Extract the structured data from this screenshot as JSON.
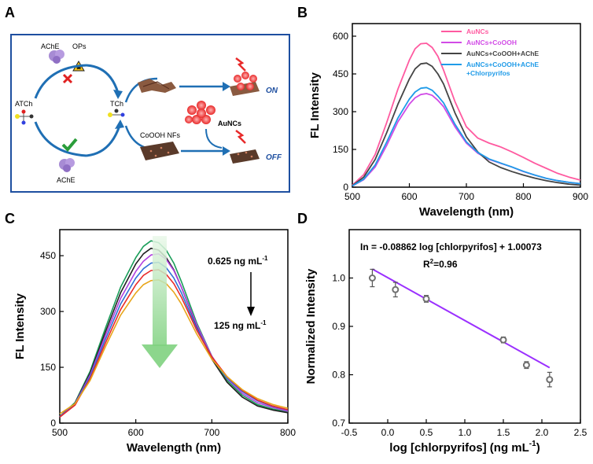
{
  "panels": {
    "A": {
      "letter": "A",
      "labels": {
        "ache_top": "AChE",
        "ops": "OPs",
        "atch": "ATCh",
        "tch": "TCh",
        "ache_bottom": "AChE",
        "cooh": "CoOOH NFs",
        "aunc": "AuNCs",
        "on": "ON",
        "off": "OFF"
      }
    },
    "B": {
      "letter": "B"
    },
    "C": {
      "letter": "C",
      "annot_top": "0.625 ng mL",
      "annot_top_sup": "-1",
      "annot_bottom": "125 ng mL",
      "annot_bottom_sup": "-1"
    },
    "D": {
      "letter": "D",
      "equation": "In = -0.08862 log [chlorpyrifos] + 1.00073",
      "r2_prefix": "R",
      "r2_sup": "2",
      "r2_value": "=0.96"
    }
  },
  "colors": {
    "aunc": "#ff5aa0",
    "aunc_cooh": "#d14be6",
    "aunc_cooh_ache": "#444444",
    "aunc_cooh_ache_cpf": "#1f9be8",
    "fit_line": "#9b30ff",
    "points": "#707070",
    "arrow_green": "#7fd17f",
    "frame_blue": "#1e4fa0"
  },
  "chart_data": [
    {
      "panel": "B",
      "type": "line",
      "xlabel": "Wavelength (nm)",
      "ylabel": "FL Intensity",
      "xlim": [
        500,
        900
      ],
      "ylim": [
        0,
        650
      ],
      "xticks": [
        500,
        600,
        700,
        800,
        900
      ],
      "yticks": [
        0,
        150,
        300,
        450,
        600
      ],
      "legend_position": "top-right",
      "series": [
        {
          "name": "AuNCs",
          "color_key": "aunc",
          "x": [
            500,
            520,
            540,
            560,
            580,
            600,
            610,
            620,
            630,
            640,
            650,
            660,
            680,
            700,
            720,
            740,
            760,
            780,
            800,
            820,
            840,
            860,
            880,
            900
          ],
          "y": [
            8,
            50,
            130,
            255,
            390,
            505,
            550,
            570,
            572,
            555,
            520,
            465,
            340,
            240,
            195,
            175,
            160,
            140,
            118,
            95,
            75,
            55,
            40,
            28
          ]
        },
        {
          "name": "AuNCs+CoOOH",
          "color_key": "aunc_cooh",
          "x": [
            500,
            520,
            540,
            560,
            580,
            600,
            610,
            620,
            630,
            640,
            650,
            660,
            680,
            700,
            720,
            740,
            760,
            780,
            800,
            820,
            840,
            860,
            880,
            900
          ],
          "y": [
            5,
            30,
            80,
            165,
            260,
            330,
            355,
            368,
            372,
            365,
            345,
            320,
            240,
            175,
            135,
            110,
            95,
            80,
            62,
            48,
            35,
            26,
            19,
            14
          ]
        },
        {
          "name": "AuNCs+CoOOH+AChE",
          "color_key": "aunc_cooh_ache",
          "x": [
            500,
            520,
            540,
            560,
            580,
            600,
            610,
            620,
            630,
            640,
            650,
            660,
            680,
            700,
            720,
            740,
            760,
            780,
            800,
            820,
            840,
            860,
            880,
            900
          ],
          "y": [
            6,
            40,
            110,
            215,
            330,
            430,
            470,
            490,
            493,
            480,
            450,
            410,
            295,
            200,
            140,
            100,
            78,
            62,
            48,
            36,
            26,
            18,
            12,
            8
          ]
        },
        {
          "name": "AuNCs+CoOOH+AChE +Chlorpyrifos",
          "color_key": "aunc_cooh_ache_cpf",
          "x": [
            500,
            520,
            540,
            560,
            580,
            600,
            610,
            620,
            630,
            640,
            650,
            660,
            680,
            700,
            720,
            740,
            760,
            780,
            800,
            820,
            840,
            860,
            880,
            900
          ],
          "y": [
            5,
            32,
            88,
            178,
            275,
            350,
            378,
            393,
            396,
            385,
            362,
            335,
            250,
            180,
            138,
            112,
            96,
            80,
            63,
            48,
            35,
            26,
            19,
            14
          ]
        }
      ]
    },
    {
      "panel": "C",
      "type": "line",
      "xlabel": "Wavelength (nm)",
      "ylabel": "FL Intensity",
      "xlim": [
        500,
        800
      ],
      "ylim": [
        0,
        520
      ],
      "xticks": [
        500,
        600,
        700,
        800
      ],
      "yticks": [
        0,
        150,
        300,
        450
      ],
      "concentration_range": [
        "0.625 ng mL-1",
        "125 ng mL-1"
      ],
      "series": [
        {
          "name": "c1",
          "color": "#1a9e5a",
          "x": [
            500,
            520,
            540,
            560,
            580,
            600,
            610,
            620,
            630,
            640,
            650,
            660,
            680,
            700,
            720,
            740,
            760,
            780,
            800
          ],
          "y": [
            18,
            55,
            140,
            255,
            365,
            445,
            475,
            490,
            485,
            465,
            430,
            380,
            270,
            180,
            115,
            75,
            50,
            38,
            30
          ]
        },
        {
          "name": "c2",
          "color": "#222222",
          "x": [
            500,
            520,
            540,
            560,
            580,
            600,
            610,
            620,
            630,
            640,
            650,
            660,
            680,
            700,
            720,
            740,
            760,
            780,
            800
          ],
          "y": [
            17,
            53,
            135,
            245,
            350,
            428,
            455,
            470,
            465,
            445,
            412,
            365,
            262,
            172,
            110,
            70,
            46,
            35,
            28
          ]
        },
        {
          "name": "c3",
          "color": "#b040e0",
          "x": [
            500,
            520,
            540,
            560,
            580,
            600,
            610,
            620,
            630,
            640,
            650,
            660,
            680,
            700,
            720,
            740,
            760,
            780,
            800
          ],
          "y": [
            17,
            52,
            130,
            235,
            335,
            408,
            435,
            452,
            455,
            440,
            410,
            365,
            265,
            180,
            120,
            80,
            55,
            42,
            32
          ]
        },
        {
          "name": "c4",
          "color": "#2f6fd6",
          "x": [
            500,
            520,
            540,
            560,
            580,
            600,
            610,
            620,
            630,
            640,
            650,
            660,
            680,
            700,
            720,
            740,
            760,
            780,
            800
          ],
          "y": [
            16,
            50,
            125,
            225,
            320,
            390,
            415,
            430,
            432,
            418,
            390,
            350,
            255,
            178,
            122,
            85,
            60,
            45,
            35
          ]
        },
        {
          "name": "c5",
          "color": "#e82a2a",
          "x": [
            500,
            520,
            540,
            560,
            580,
            600,
            610,
            620,
            630,
            640,
            650,
            660,
            680,
            700,
            720,
            740,
            760,
            780,
            800
          ],
          "y": [
            16,
            48,
            120,
            215,
            305,
            372,
            397,
            410,
            412,
            400,
            375,
            338,
            250,
            178,
            125,
            88,
            62,
            46,
            36
          ]
        },
        {
          "name": "c6",
          "color": "#e8a51a",
          "x": [
            500,
            520,
            540,
            560,
            580,
            600,
            610,
            620,
            630,
            640,
            650,
            660,
            680,
            700,
            720,
            740,
            760,
            780,
            800
          ],
          "y": [
            25,
            52,
            115,
            205,
            290,
            350,
            372,
            383,
            385,
            375,
            352,
            320,
            240,
            172,
            125,
            90,
            66,
            50,
            40
          ]
        }
      ]
    },
    {
      "panel": "D",
      "type": "scatter",
      "xlabel": "log [chlorpyrifos] (ng mL",
      "xlabel_sup": "-1",
      "xlabel_end": ")",
      "ylabel": "Normalized Intensity",
      "xlim": [
        -0.5,
        2.5
      ],
      "ylim": [
        0.7,
        1.1
      ],
      "xticks": [
        -0.5,
        0.0,
        0.5,
        1.0,
        1.5,
        2.0,
        2.5
      ],
      "yticks": [
        0.7,
        0.8,
        0.9,
        1.0
      ],
      "points": [
        {
          "x": -0.2,
          "y": 1.0,
          "err": 0.018
        },
        {
          "x": 0.1,
          "y": 0.976,
          "err": 0.015
        },
        {
          "x": 0.5,
          "y": 0.957,
          "err": 0.007
        },
        {
          "x": 1.5,
          "y": 0.872,
          "err": 0.006
        },
        {
          "x": 1.8,
          "y": 0.82,
          "err": 0.007
        },
        {
          "x": 2.1,
          "y": 0.79,
          "err": 0.015
        }
      ],
      "fit": {
        "slope": -0.08862,
        "intercept": 1.00073,
        "x_range": [
          -0.2,
          2.1
        ]
      }
    }
  ]
}
